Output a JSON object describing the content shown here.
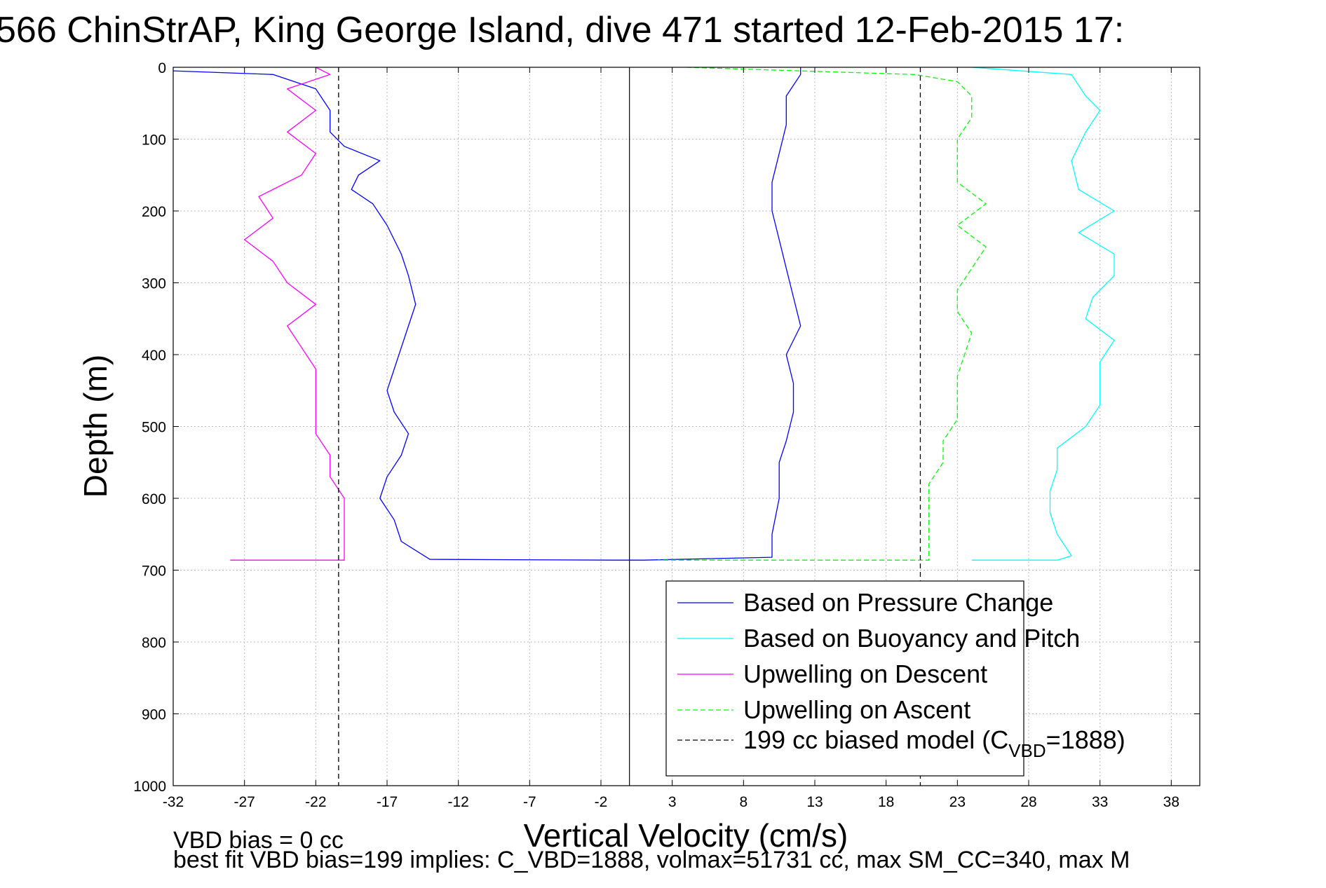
{
  "chart_data": {
    "type": "line",
    "title": "566 ChinStrAP, King George Island, dive 471 started 12-Feb-2015 17:",
    "xlabel": "Vertical Velocity (cm/s)",
    "ylabel": "Depth (m)",
    "xlim": [
      -32,
      40
    ],
    "ylim": [
      0,
      1000
    ],
    "y_reversed": true,
    "x_ticks": [
      -32,
      -27,
      -22,
      -17,
      -12,
      -7,
      -2,
      3,
      8,
      13,
      18,
      23,
      28,
      33,
      38
    ],
    "y_ticks": [
      0,
      100,
      200,
      300,
      400,
      500,
      600,
      700,
      800,
      900,
      1000
    ],
    "grid": true,
    "legend_position": "bottom-right",
    "series": [
      {
        "name": "Based on Pressure Change",
        "color": "#0000ff",
        "dash": "solid",
        "points": [
          [
            -32,
            5
          ],
          [
            -25,
            10
          ],
          [
            -22,
            30
          ],
          [
            -21,
            60
          ],
          [
            -21,
            90
          ],
          [
            -20,
            110
          ],
          [
            -17.5,
            130
          ],
          [
            -19,
            150
          ],
          [
            -19.5,
            170
          ],
          [
            -18,
            190
          ],
          [
            -17,
            220
          ],
          [
            -16,
            260
          ],
          [
            -15.5,
            290
          ],
          [
            -15,
            330
          ],
          [
            -15.5,
            360
          ],
          [
            -16,
            390
          ],
          [
            -16.5,
            420
          ],
          [
            -17,
            450
          ],
          [
            -16.5,
            480
          ],
          [
            -15.5,
            510
          ],
          [
            -16,
            540
          ],
          [
            -17,
            570
          ],
          [
            -17.5,
            600
          ],
          [
            -16.5,
            630
          ],
          [
            -16,
            660
          ],
          [
            -14,
            685
          ],
          [
            -1,
            686
          ],
          [
            1,
            686
          ],
          [
            10,
            682
          ],
          [
            10,
            650
          ],
          [
            10.5,
            600
          ],
          [
            10.5,
            550
          ],
          [
            11,
            520
          ],
          [
            11.5,
            480
          ],
          [
            11.5,
            440
          ],
          [
            11,
            400
          ],
          [
            12,
            360
          ],
          [
            11.5,
            320
          ],
          [
            11,
            280
          ],
          [
            10.5,
            240
          ],
          [
            10,
            200
          ],
          [
            10,
            160
          ],
          [
            10.5,
            120
          ],
          [
            11,
            80
          ],
          [
            11,
            40
          ],
          [
            12,
            10
          ],
          [
            12,
            0
          ]
        ]
      },
      {
        "name": "Based on Buoyancy and Pitch",
        "color": "#00ffff",
        "dash": "solid",
        "points": [
          [
            24,
            0
          ],
          [
            31,
            10
          ],
          [
            32,
            40
          ],
          [
            33,
            60
          ],
          [
            32,
            90
          ],
          [
            31,
            130
          ],
          [
            31.5,
            170
          ],
          [
            34,
            200
          ],
          [
            31.5,
            230
          ],
          [
            34,
            260
          ],
          [
            34,
            290
          ],
          [
            32.5,
            320
          ],
          [
            32,
            350
          ],
          [
            34,
            380
          ],
          [
            33,
            410
          ],
          [
            33,
            440
          ],
          [
            33,
            470
          ],
          [
            32,
            500
          ],
          [
            30,
            530
          ],
          [
            30,
            560
          ],
          [
            29.5,
            590
          ],
          [
            29.5,
            620
          ],
          [
            30,
            650
          ],
          [
            31,
            680
          ],
          [
            30,
            686
          ],
          [
            24,
            686
          ]
        ]
      },
      {
        "name": "Upwelling on Descent",
        "color": "#ff00ff",
        "dash": "solid",
        "points": [
          [
            -22,
            0
          ],
          [
            -21,
            10
          ],
          [
            -24,
            30
          ],
          [
            -22,
            60
          ],
          [
            -24,
            90
          ],
          [
            -22,
            120
          ],
          [
            -23,
            150
          ],
          [
            -26,
            180
          ],
          [
            -25,
            210
          ],
          [
            -27,
            240
          ],
          [
            -25,
            270
          ],
          [
            -24,
            300
          ],
          [
            -22,
            330
          ],
          [
            -24,
            360
          ],
          [
            -23,
            390
          ],
          [
            -22,
            420
          ],
          [
            -22,
            450
          ],
          [
            -22,
            480
          ],
          [
            -22,
            510
          ],
          [
            -21,
            540
          ],
          [
            -21,
            570
          ],
          [
            -20,
            600
          ],
          [
            -20,
            630
          ],
          [
            -20,
            660
          ],
          [
            -20,
            686
          ],
          [
            -28,
            686
          ]
        ]
      },
      {
        "name": "Upwelling on Ascent",
        "color": "#00ff00",
        "dash": "dashed",
        "points": [
          [
            4,
            0
          ],
          [
            20,
            10
          ],
          [
            23,
            20
          ],
          [
            24,
            40
          ],
          [
            24,
            70
          ],
          [
            23,
            100
          ],
          [
            23,
            130
          ],
          [
            23,
            160
          ],
          [
            25,
            190
          ],
          [
            23,
            220
          ],
          [
            25,
            250
          ],
          [
            24,
            280
          ],
          [
            23,
            310
          ],
          [
            23,
            340
          ],
          [
            24,
            370
          ],
          [
            23.5,
            400
          ],
          [
            23,
            430
          ],
          [
            23,
            460
          ],
          [
            23,
            490
          ],
          [
            22,
            520
          ],
          [
            22,
            550
          ],
          [
            21,
            580
          ],
          [
            21,
            610
          ],
          [
            21,
            640
          ],
          [
            21,
            670
          ],
          [
            21,
            686
          ],
          [
            2,
            686
          ]
        ]
      },
      {
        "name": "199 cc biased model (C_VBD=1888)",
        "color": "#000000",
        "dash": "dashed",
        "points": [
          [
            -20.4,
            0
          ],
          [
            -20.4,
            1000
          ],
          [
            20.4,
            0
          ],
          [
            20.4,
            1000
          ]
        ]
      }
    ],
    "reference_line": {
      "x": 0,
      "color": "#000000"
    },
    "legend_entries": [
      {
        "text": "Based on Pressure Change",
        "color": "#0000ff",
        "dash": "solid"
      },
      {
        "text": "Based on Buoyancy and Pitch",
        "color": "#00ffff",
        "dash": "solid"
      },
      {
        "text": "Upwelling on Descent",
        "color": "#ff00ff",
        "dash": "solid"
      },
      {
        "text": "Upwelling on Ascent",
        "color": "#00ff00",
        "dash": "dashed"
      },
      {
        "text": "199 cc biased model (C",
        "sub": "VBD",
        "suffix": "=1888)",
        "color": "#000000",
        "dash": "dashed"
      }
    ],
    "annotations": [
      "VBD bias = 0 cc",
      "best fit VBD bias=199 implies: C_VBD=1888, volmax=51731 cc, max SM_CC=340, max M"
    ]
  }
}
